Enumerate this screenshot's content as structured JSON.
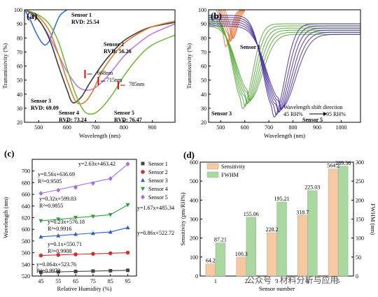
{
  "panels": {
    "a": {
      "label": "(a)"
    },
    "b": {
      "label": "(b)"
    },
    "c": {
      "label": "(c)"
    },
    "d": {
      "label": "(d)"
    }
  },
  "watermark": "公众号 · 材料分析与应用",
  "chart_data": [
    {
      "panel": "a",
      "type": "line",
      "xlabel": "Wavelength (nm)",
      "ylabel": "Transmissivity (%)",
      "xlim": [
        450,
        980
      ],
      "ylim": [
        20,
        100
      ],
      "xticks": [
        500,
        600,
        700,
        800,
        900
      ],
      "yticks": [
        20,
        30,
        40,
        50,
        60,
        70,
        80,
        90,
        100
      ],
      "series": [
        {
          "name": "Sensor 1",
          "color": "#2f6fd6",
          "x": [
            450,
            470,
            490,
            510,
            525,
            540,
            555,
            575,
            600
          ],
          "y": [
            100,
            93,
            84,
            77,
            75,
            79,
            87,
            96,
            100
          ]
        },
        {
          "name": "Sensor 2",
          "color": "#c07be0",
          "x": [
            450,
            480,
            510,
            540,
            570,
            600,
            640,
            680,
            720,
            760,
            800,
            850,
            900,
            980
          ],
          "y": [
            100,
            96,
            90,
            80,
            68,
            56,
            45,
            43,
            48,
            57,
            67,
            76,
            83,
            90
          ]
        },
        {
          "name": "Sensor 3",
          "color": "#3d3d3d",
          "x": [
            450,
            480,
            510,
            540,
            570,
            600,
            620,
            650,
            680,
            720,
            760,
            800,
            850,
            900,
            980
          ],
          "y": [
            100,
            97,
            90,
            78,
            60,
            43,
            34,
            38,
            48,
            60,
            70,
            78,
            84,
            88,
            91
          ]
        },
        {
          "name": "Sensor 4",
          "color": "#e27a2d",
          "x": [
            450,
            480,
            510,
            540,
            570,
            600,
            630,
            660,
            690,
            720,
            760,
            800,
            850,
            900,
            980
          ],
          "y": [
            100,
            98,
            93,
            84,
            68,
            50,
            35,
            34,
            42,
            55,
            67,
            76,
            83,
            88,
            92
          ]
        },
        {
          "name": "Sensor 5",
          "color": "#78b83a",
          "x": [
            450,
            480,
            510,
            540,
            570,
            600,
            630,
            660,
            690,
            720,
            760,
            800,
            850,
            900,
            980
          ],
          "y": [
            100,
            98,
            95,
            89,
            77,
            58,
            40,
            28,
            26,
            30,
            40,
            53,
            66,
            75,
            82
          ]
        }
      ],
      "annotations": [
        {
          "text": "Sensor 1",
          "color": "#2f6fd6"
        },
        {
          "text": "RVD: 25.54",
          "color": "#2f6fd6"
        },
        {
          "text": "Sensor 2",
          "color": "#c07be0"
        },
        {
          "text": "RVD: 56.26",
          "color": "#c07be0"
        },
        {
          "text": "Sensor 3",
          "color": "#3d3d3d"
        },
        {
          "text": "RVD: 69.09",
          "color": "#3d3d3d"
        },
        {
          "text": "Sensor 4",
          "color": "#e27a2d"
        },
        {
          "text": "RVD: 73.24",
          "color": "#e27a2d"
        },
        {
          "text": "Sensor 5",
          "color": "#78b83a"
        },
        {
          "text": "RVD: 76.47",
          "color": "#78b83a"
        },
        {
          "text": "668nm"
        },
        {
          "text": "715nm"
        },
        {
          "text": "785nm"
        }
      ],
      "marker_x": [
        668,
        715,
        785
      ]
    },
    {
      "panel": "b",
      "type": "line",
      "xlabel": "Wavelength (nm)",
      "ylabel": "Transmissivity (%)",
      "xlim": [
        450,
        1080
      ],
      "ylim": [
        20,
        100
      ],
      "xticks": [
        500,
        600,
        700,
        800,
        900,
        1000
      ],
      "yticks": [
        20,
        30,
        40,
        50,
        60,
        70,
        80,
        90,
        100
      ],
      "groups": [
        {
          "name": "Sensor 1",
          "color": "#e8702d",
          "minimum": 520,
          "depth": 74,
          "count": 6
        },
        {
          "name": "Sensor 3",
          "color": "#57a83a",
          "minimum": 590,
          "depth": 30,
          "count": 6
        },
        {
          "name": "Sensor 5",
          "color": "#4a2e9c",
          "minimum": 720,
          "depth": 24,
          "count": 6
        }
      ],
      "annotations": [
        {
          "text": "Sensor 1",
          "color": "#e8702d"
        },
        {
          "text": "Sensor 3",
          "color": "#2a7a40"
        },
        {
          "text": "Sensor 5",
          "color": "#4a2e9c"
        },
        {
          "text": "Wavelength shift direction"
        },
        {
          "text": "45 RH%"
        },
        {
          "text": "95 RH%"
        }
      ]
    },
    {
      "panel": "c",
      "type": "scatter",
      "xlabel": "Relative Humidity (%)",
      "ylabel": "Wavelength (nm)",
      "xlim": [
        40,
        100
      ],
      "ylim": [
        520,
        720
      ],
      "xticks": [
        45,
        55,
        65,
        75,
        85,
        95
      ],
      "yticks": [
        520,
        540,
        560,
        580,
        600,
        620,
        640,
        660,
        680,
        700
      ],
      "x": [
        45,
        55,
        65,
        75,
        85,
        95
      ],
      "series": [
        {
          "name": "Sensor 1",
          "color": "#444444",
          "marker": "square",
          "values": [
            526.6,
            527.3,
            527.9,
            528.5,
            529.1,
            529.8
          ]
        },
        {
          "name": "Sensor 2",
          "color": "#d03030",
          "marker": "circle",
          "values": [
            555.2,
            556.1,
            557.1,
            558.1,
            559.0,
            560.1
          ]
        },
        {
          "name": "Sensor 3",
          "color": "#2a5fd0",
          "marker": "triangle-up",
          "values": [
            587.3,
            589.2,
            591.7,
            593.2,
            595.5,
            603.0
          ]
        },
        {
          "name": "Sensor 4",
          "color": "#2f9e3f",
          "marker": "triangle-down",
          "values": [
            614.6,
            617.4,
            620.2,
            622.0,
            625.0,
            642.0
          ]
        },
        {
          "name": "Sensor 5",
          "color": "#a56de0",
          "marker": "diamond",
          "values": [
            661.6,
            667.0,
            672.0,
            679.0,
            687.0,
            712.0
          ]
        }
      ],
      "fits": [
        {
          "equation": "y=0.064x+523.76",
          "r2": "R²=0.9972",
          "color": "#444444"
        },
        {
          "equation": "y=0.1x+550.71",
          "r2": "R²=0.9908",
          "color": "#d03030"
        },
        {
          "equation": "y=0.23x+576.18",
          "r2": "R²=0.9916",
          "color": "#2a5fd0"
        },
        {
          "equation": "y=0.32x+599.83",
          "r2": "R²=0.9855",
          "color": "#2f9e3f"
        },
        {
          "equation": "y=0.56x+636.69",
          "r2": "R²=0.9505",
          "color": "#a56de0"
        },
        {
          "equation": "y=2.63x+463.42",
          "r2": "",
          "color": "#a56de0"
        },
        {
          "equation": "y=1.67x+485.34",
          "r2": "",
          "color": "#2f9e3f"
        },
        {
          "equation": "y=0.86x+522.72",
          "r2": "",
          "color": "#2a5fd0"
        }
      ]
    },
    {
      "panel": "d",
      "type": "bar",
      "xlabel": "Sensor number",
      "ylabel": "Sensitivity (pm/RH%)",
      "y2label": "FWHM (nm)",
      "categories": [
        "1",
        "2",
        "3",
        "4",
        "5"
      ],
      "ylim": [
        0,
        600
      ],
      "y2lim": [
        0,
        300
      ],
      "yticks": [
        0,
        100,
        200,
        300,
        400,
        500,
        600
      ],
      "y2ticks": [
        0,
        50,
        100,
        150,
        200,
        250,
        300
      ],
      "series": [
        {
          "name": "Sensitivity",
          "color": "#f6c9a0",
          "axis": "left",
          "values": [
            64.2,
            100.3,
            228.2,
            318.7,
            564.2
          ],
          "labels": [
            "64.2",
            "100.3",
            "228.2",
            "318.7",
            "564.2"
          ]
        },
        {
          "name": "FWHM",
          "color": "#a8d8a0",
          "axis": "right",
          "values": [
            87.21,
            155.06,
            195.21,
            225.03,
            289.36
          ],
          "labels": [
            "87.21",
            "155.06",
            "195.21",
            "225.03",
            "289.36"
          ]
        }
      ]
    }
  ]
}
